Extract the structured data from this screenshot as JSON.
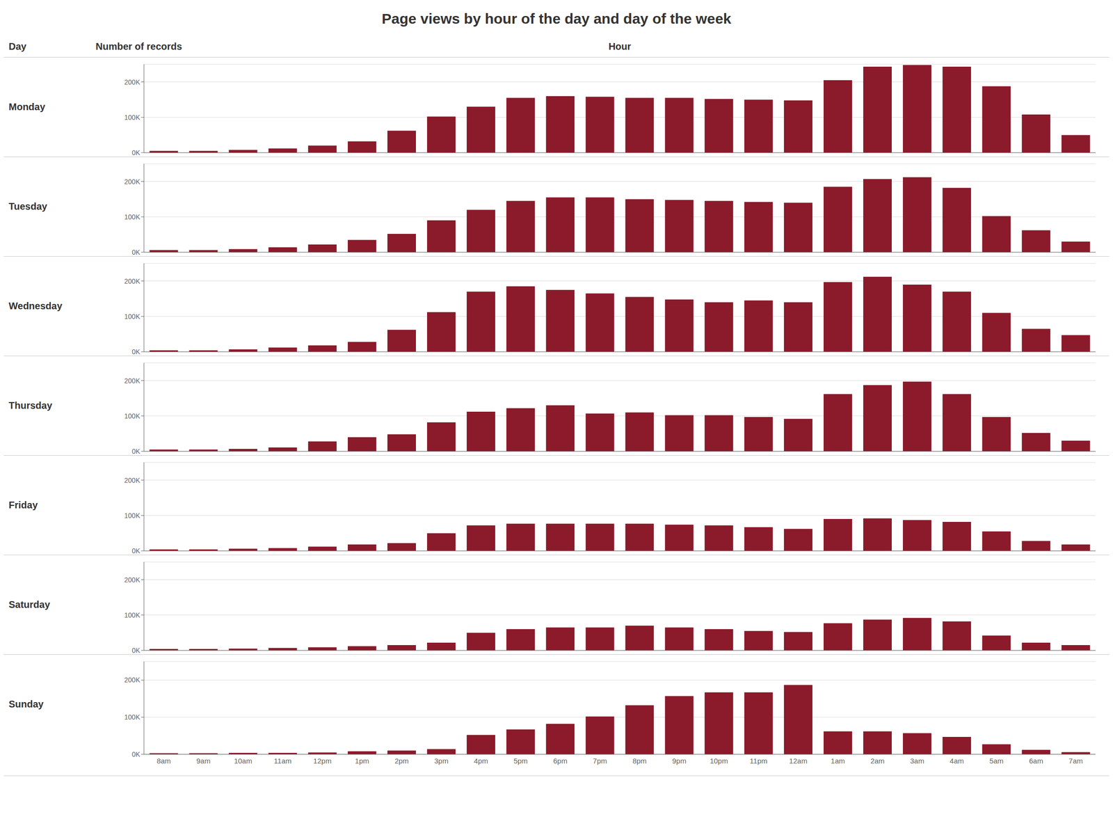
{
  "chart_data": {
    "type": "bar",
    "title": "Page views by hour of the day and day of the week",
    "xlabel": "Hour",
    "ylabel": "Number of records",
    "annotations": [
      "Day"
    ],
    "categories": [
      "8am",
      "9am",
      "10am",
      "11am",
      "12pm",
      "1pm",
      "2pm",
      "3pm",
      "4pm",
      "5pm",
      "6pm",
      "7pm",
      "8pm",
      "9pm",
      "10pm",
      "11pm",
      "12am",
      "1am",
      "2am",
      "3am",
      "4am",
      "5am",
      "6am",
      "7am"
    ],
    "series": [
      {
        "name": "Monday",
        "values": [
          5000,
          5000,
          8000,
          12000,
          20000,
          32000,
          62000,
          102000,
          130000,
          155000,
          160000,
          158000,
          155000,
          155000,
          152000,
          150000,
          148000,
          205000,
          243000,
          248000,
          243000,
          188000,
          108000,
          50000
        ]
      },
      {
        "name": "Tuesday",
        "values": [
          6000,
          6000,
          9000,
          14000,
          22000,
          35000,
          52000,
          90000,
          120000,
          145000,
          155000,
          155000,
          150000,
          148000,
          145000,
          142000,
          140000,
          185000,
          207000,
          212000,
          182000,
          102000,
          62000,
          30000
        ]
      },
      {
        "name": "Wednesday",
        "values": [
          4000,
          4000,
          7000,
          12000,
          18000,
          28000,
          62000,
          112000,
          170000,
          185000,
          175000,
          165000,
          155000,
          148000,
          140000,
          145000,
          140000,
          197000,
          212000,
          190000,
          170000,
          110000,
          65000,
          47000
        ]
      },
      {
        "name": "Thursday",
        "values": [
          5000,
          5000,
          7000,
          11000,
          28000,
          40000,
          48000,
          82000,
          112000,
          122000,
          130000,
          107000,
          110000,
          102000,
          102000,
          97000,
          92000,
          162000,
          187000,
          197000,
          162000,
          97000,
          52000,
          30000
        ]
      },
      {
        "name": "Friday",
        "values": [
          4000,
          4000,
          6000,
          8000,
          12000,
          18000,
          22000,
          50000,
          72000,
          77000,
          77000,
          77000,
          77000,
          74000,
          72000,
          67000,
          62000,
          90000,
          92000,
          87000,
          82000,
          55000,
          28000,
          18000
        ]
      },
      {
        "name": "Saturday",
        "values": [
          4000,
          4000,
          5000,
          7000,
          9000,
          12000,
          15000,
          22000,
          50000,
          60000,
          65000,
          65000,
          70000,
          65000,
          60000,
          55000,
          52000,
          77000,
          87000,
          92000,
          82000,
          42000,
          22000,
          15000
        ]
      },
      {
        "name": "Sunday",
        "values": [
          3000,
          3000,
          4000,
          4000,
          5000,
          8000,
          10000,
          14000,
          52000,
          67000,
          82000,
          102000,
          132000,
          157000,
          167000,
          167000,
          187000,
          62000,
          62000,
          57000,
          47000,
          27000,
          12000,
          6000
        ]
      }
    ],
    "color": "#8b1a2a",
    "ylim": [
      0,
      250000
    ],
    "yticks": [
      {
        "value": 0,
        "label": "0K"
      },
      {
        "value": 100000,
        "label": "100K"
      },
      {
        "value": 200000,
        "label": "200K"
      }
    ],
    "grid": true
  }
}
